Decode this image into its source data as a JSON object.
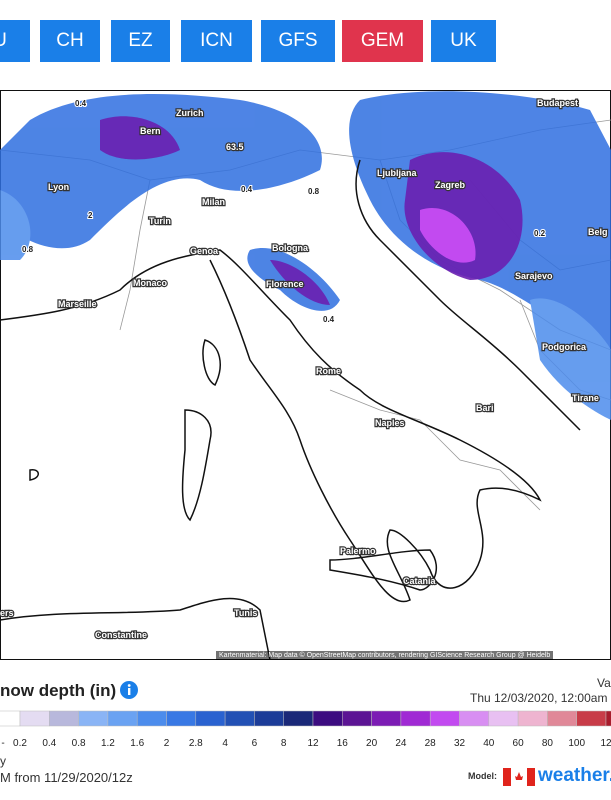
{
  "tabs": {
    "items": [
      "U",
      "CH",
      "EZ",
      "ICN",
      "GFS",
      "GEM",
      "UK"
    ],
    "active": 5,
    "color": "#1a7fe8",
    "active_color": "#e0344d"
  },
  "map": {
    "labels": [
      "Bern",
      "Zurich",
      "Budapest",
      "Ljubljana",
      "Zagreb",
      "Lyon",
      "Turin",
      "Milan",
      "Genoa",
      "Bologna",
      "Monaco",
      "Florence",
      "Marseille",
      "Sarajevo",
      "Podgorica",
      "Rome",
      "Bari",
      "Naples",
      "Tirane",
      "Palermo",
      "Catania",
      "Tunis",
      "Constantine",
      "ers",
      "Belg",
      "63.5",
      "0.4",
      "0.8",
      "2",
      "0.2",
      "0.4",
      "0.8",
      "0.4"
    ],
    "attribution": "Kartenmaterial: Map data © OpenStreetMap contributors, rendering GIScience Research Group @ Heidelb"
  },
  "footer": {
    "title": "now depth (in)",
    "valid_label": "Val",
    "valid_time": "Thu 12/03/2020, 12:00am",
    "line1": "y",
    "line2": "M from 11/29/2020/12z",
    "model_label": "Model:",
    "brand": "weather."
  },
  "legend": {
    "labels": [
      "-",
      "0.2",
      "0.4",
      "0.8",
      "1.2",
      "1.6",
      "2",
      "2.8",
      "4",
      "6",
      "8",
      "12",
      "16",
      "20",
      "24",
      "28",
      "32",
      "40",
      "60",
      "80",
      "100",
      "12"
    ],
    "colors": [
      "#ffffff",
      "#e4dcf2",
      "#b8b8dc",
      "#8ab4f5",
      "#6aa2f2",
      "#4c8cec",
      "#3878e4",
      "#2a62d0",
      "#2250b4",
      "#1c3c98",
      "#1a2878",
      "#3c0c80",
      "#5c1494",
      "#7c1cb4",
      "#a02ad4",
      "#c24af0",
      "#d88ef2",
      "#e8c0f2",
      "#eeb4d0",
      "#e08898",
      "#c83c48",
      "#a81c2c"
    ]
  }
}
